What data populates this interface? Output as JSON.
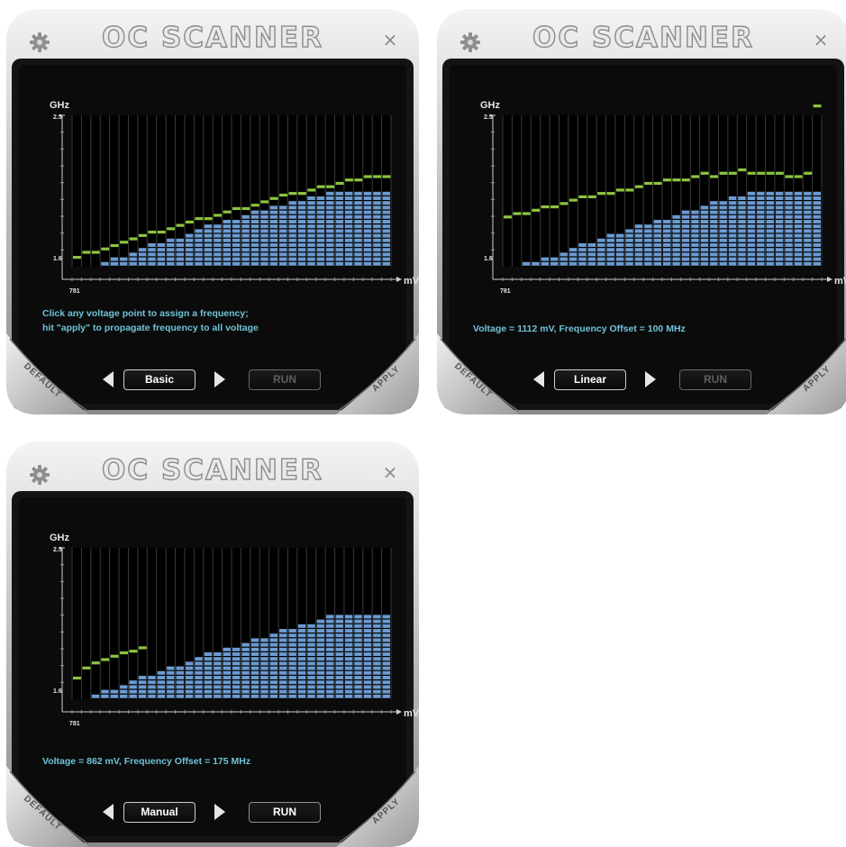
{
  "app": {
    "title": "OC SCANNER"
  },
  "icons": {
    "settings": "gear-icon",
    "close": "close-icon",
    "prev": "triangle-left-icon",
    "next": "triangle-right-icon"
  },
  "colors": {
    "accent_text": "#6fc3d8",
    "curve_green": "#8cc63e",
    "bar_blue": "#6c9bd2"
  },
  "windows": [
    {
      "close_label": "×",
      "mode_label": "Basic",
      "run_label": "RUN",
      "run_enabled": false,
      "default_label": "DEFAULT",
      "apply_label": "APPLY",
      "message_lines": [
        "Click any voltage point to assign a frequency;",
        "hit \"apply\" to propagate frequency to all voltage"
      ],
      "chart_data": {
        "type": "bar",
        "ylabel": "GHz",
        "xlabel": "mV",
        "ylim": [
          1.6,
          2.5
        ],
        "y_tick_labels": [
          "2.5",
          "1.6"
        ],
        "x_tick_label": "781",
        "series": [
          {
            "type": "bar",
            "values": [
              1.6,
              1.6,
              1.6,
              1.62,
              1.64,
              1.66,
              1.68,
              1.7,
              1.72,
              1.74,
              1.76,
              1.77,
              1.79,
              1.81,
              1.83,
              1.85,
              1.87,
              1.88,
              1.9,
              1.92,
              1.93,
              1.95,
              1.96,
              1.98,
              1.99,
              2.0,
              2.02,
              2.03,
              2.05,
              2.05,
              2.05,
              2.05,
              2.05,
              2.05
            ]
          },
          {
            "type": "step-line",
            "values": [
              1.6,
              1.63,
              1.63,
              1.65,
              1.67,
              1.69,
              1.71,
              1.73,
              1.75,
              1.75,
              1.77,
              1.79,
              1.81,
              1.83,
              1.83,
              1.85,
              1.87,
              1.89,
              1.89,
              1.91,
              1.93,
              1.95,
              1.97,
              1.98,
              1.98,
              2.0,
              2.02,
              2.02,
              2.04,
              2.06,
              2.06,
              2.08,
              2.08,
              2.08
            ]
          }
        ]
      }
    },
    {
      "close_label": "×",
      "mode_label": "Linear",
      "run_label": "RUN",
      "run_enabled": false,
      "default_label": "DEFAULT",
      "apply_label": "APPLY",
      "message_lines": [
        "Voltage = 1112 mV, Frequency Offset = 100 MHz"
      ],
      "chart_data": {
        "type": "bar",
        "ylabel": "GHz",
        "xlabel": "mV",
        "ylim": [
          1.6,
          2.5
        ],
        "y_tick_labels": [
          "2.5",
          "1.6"
        ],
        "x_tick_label": "781",
        "series": [
          {
            "type": "bar",
            "values": [
              1.6,
              1.6,
              1.61,
              1.62,
              1.64,
              1.66,
              1.68,
              1.7,
              1.72,
              1.74,
              1.76,
              1.78,
              1.79,
              1.81,
              1.83,
              1.85,
              1.87,
              1.88,
              1.9,
              1.92,
              1.94,
              1.95,
              1.97,
              1.99,
              2.0,
              2.02,
              2.03,
              2.05,
              2.05,
              2.05,
              2.05,
              2.05,
              2.05,
              2.05
            ]
          },
          {
            "type": "step-line",
            "values": [
              1.84,
              1.86,
              1.86,
              1.88,
              1.9,
              1.9,
              1.92,
              1.94,
              1.96,
              1.96,
              1.98,
              1.98,
              2.0,
              2.0,
              2.02,
              2.04,
              2.04,
              2.06,
              2.06,
              2.06,
              2.08,
              2.1,
              2.08,
              2.1,
              2.1,
              2.12,
              2.1,
              2.1,
              2.1,
              2.1,
              2.08,
              2.08,
              2.1,
              2.5
            ]
          }
        ]
      }
    },
    {
      "close_label": "×",
      "mode_label": "Manual",
      "run_label": "RUN",
      "run_enabled": true,
      "default_label": "DEFAULT",
      "apply_label": "APPLY",
      "message_lines": [
        "Voltage = 862 mV, Frequency Offset = 175 MHz"
      ],
      "chart_data": {
        "type": "bar",
        "ylabel": "GHz",
        "xlabel": "mV",
        "ylim": [
          1.6,
          2.5
        ],
        "y_tick_labels": [
          "2.5",
          "1.6"
        ],
        "x_tick_label": "781",
        "series": [
          {
            "type": "bar",
            "values": [
              1.6,
              1.6,
              1.62,
              1.64,
              1.66,
              1.68,
              1.7,
              1.72,
              1.74,
              1.76,
              1.78,
              1.8,
              1.82,
              1.84,
              1.86,
              1.88,
              1.9,
              1.91,
              1.93,
              1.95,
              1.96,
              1.98,
              2.0,
              2.01,
              2.03,
              2.04,
              2.06,
              2.08,
              2.09,
              2.1,
              2.1,
              2.1,
              2.1,
              2.1
            ]
          },
          {
            "type": "step-line",
            "values": [
              1.67,
              1.73,
              1.76,
              1.78,
              1.8,
              1.82,
              1.83,
              1.85
            ]
          }
        ]
      }
    }
  ]
}
